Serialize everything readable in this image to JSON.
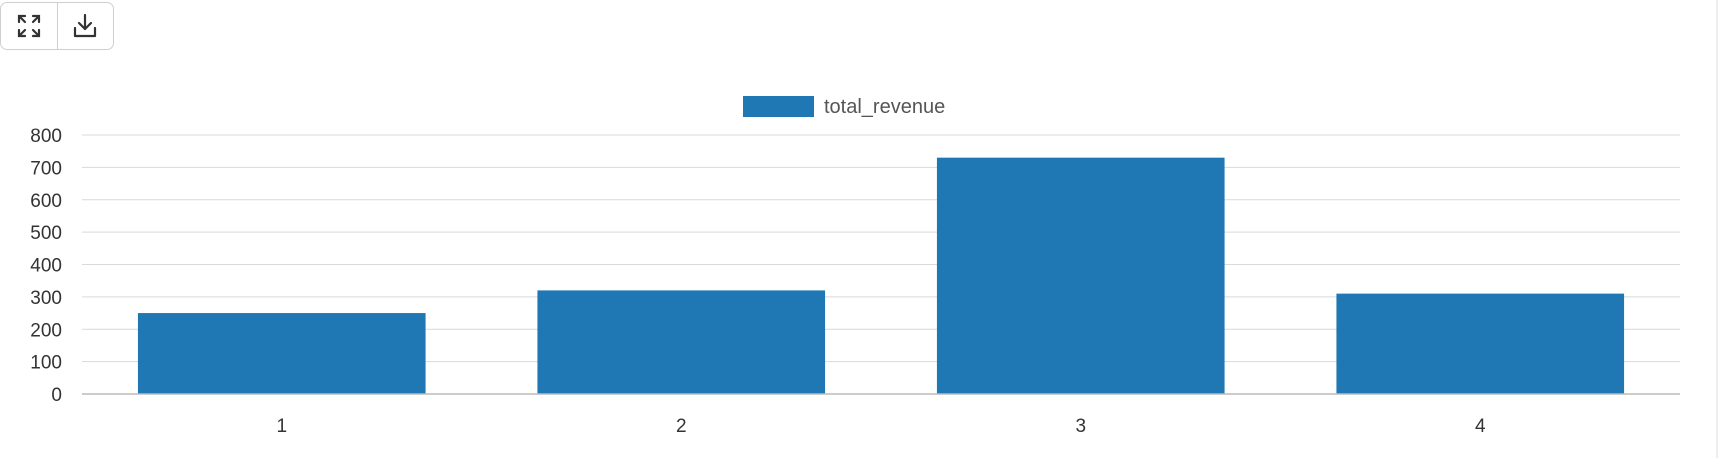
{
  "toolbar": {
    "fullscreen_icon": "expand-icon",
    "download_icon": "download-icon"
  },
  "colors": {
    "bar": "#1f77b4",
    "grid": "#d9d9d9",
    "axis": "#bbbbbb"
  },
  "chart_data": {
    "type": "bar",
    "categories": [
      "1",
      "2",
      "3",
      "4"
    ],
    "series": [
      {
        "name": "total_revenue",
        "values": [
          250,
          320,
          730,
          310
        ]
      }
    ],
    "ylim": [
      0,
      800
    ],
    "yticks": [
      0,
      100,
      200,
      300,
      400,
      500,
      600,
      700,
      800
    ],
    "grid": true,
    "legend": "top-center",
    "title": "",
    "xlabel": "",
    "ylabel": ""
  }
}
